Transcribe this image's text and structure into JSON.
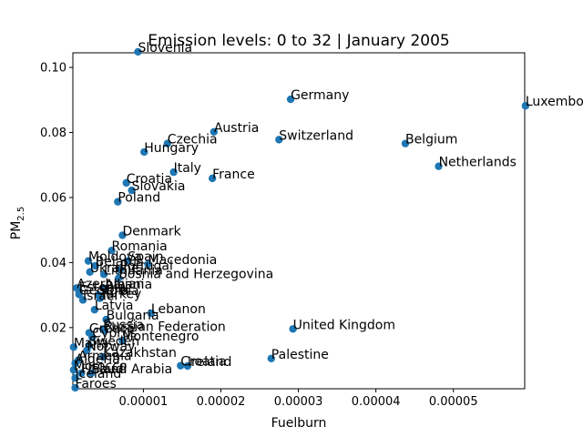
{
  "chart_data": {
    "type": "scatter",
    "title": "Emission levels: 0 to 32 | January 2005",
    "xlabel": "Fuelburn",
    "ylabel": "PM",
    "ylabel_sub": "2.5",
    "xlim": [
      9e-07,
      5.92e-05
    ],
    "ylim": [
      0.0012,
      0.1045
    ],
    "xticks": [
      1e-05,
      2e-05,
      3e-05,
      4e-05,
      5e-05
    ],
    "xtick_labels": [
      "0.00001",
      "0.00002",
      "0.00003",
      "0.00004",
      "0.00005"
    ],
    "yticks": [
      0.02,
      0.04,
      0.06,
      0.08,
      0.1
    ],
    "ytick_labels": [
      "0.02",
      "0.04",
      "0.06",
      "0.08",
      "0.10"
    ],
    "marker_color": "#1f77b4",
    "grid": false,
    "points": [
      {
        "label": "Slovenia",
        "x": 9.3e-06,
        "y": 0.1048
      },
      {
        "label": "Germany",
        "x": 2.9e-05,
        "y": 0.0902
      },
      {
        "label": "Luxembourg",
        "x": 5.93e-05,
        "y": 0.0882
      },
      {
        "label": "Austria",
        "x": 1.91e-05,
        "y": 0.0802
      },
      {
        "label": "Czechia",
        "x": 1.31e-05,
        "y": 0.0766
      },
      {
        "label": "Switzerland",
        "x": 2.75e-05,
        "y": 0.0778
      },
      {
        "label": "Belgium",
        "x": 4.38e-05,
        "y": 0.0766
      },
      {
        "label": "Hungary",
        "x": 1.01e-05,
        "y": 0.074
      },
      {
        "label": "Netherlands",
        "x": 4.81e-05,
        "y": 0.0696
      },
      {
        "label": "Italy",
        "x": 1.39e-05,
        "y": 0.0678
      },
      {
        "label": "France",
        "x": 1.89e-05,
        "y": 0.0659
      },
      {
        "label": "Croatia",
        "x": 7.8e-06,
        "y": 0.0645
      },
      {
        "label": "Slovakia",
        "x": 8.5e-06,
        "y": 0.0622
      },
      {
        "label": "Poland",
        "x": 6.7e-06,
        "y": 0.0587
      },
      {
        "label": "Denmark",
        "x": 7.3e-06,
        "y": 0.0484
      },
      {
        "label": "Romania",
        "x": 5.9e-06,
        "y": 0.0437
      },
      {
        "label": "Moldova",
        "x": 2.9e-06,
        "y": 0.0405
      },
      {
        "label": "Spain",
        "x": 8e-06,
        "y": 0.0405
      },
      {
        "label": "Macedonia",
        "x": 1.06e-05,
        "y": 0.0395
      },
      {
        "label": "Belarus",
        "x": 3.8e-06,
        "y": 0.039
      },
      {
        "label": "Portugal",
        "x": 7e-06,
        "y": 0.0378
      },
      {
        "label": "Ukraine",
        "x": 3.1e-06,
        "y": 0.0371
      },
      {
        "label": "Lithuania",
        "x": 4.9e-06,
        "y": 0.0364
      },
      {
        "label": "Bosnia and Herzegovina",
        "x": 6.8e-06,
        "y": 0.0352
      },
      {
        "label": "Azerbaijan",
        "x": 1.4e-06,
        "y": 0.0322
      },
      {
        "label": "Estonia",
        "x": 1.7e-06,
        "y": 0.0312
      },
      {
        "label": "Albania",
        "x": 5e-06,
        "y": 0.032
      },
      {
        "label": "Georgia",
        "x": 1.7e-06,
        "y": 0.0302
      },
      {
        "label": "Serbia",
        "x": 4.2e-06,
        "y": 0.03
      },
      {
        "label": "Turkey",
        "x": 4.4e-06,
        "y": 0.029
      },
      {
        "label": "Israel",
        "x": 2.2e-06,
        "y": 0.0285
      },
      {
        "label": "Latvia",
        "x": 3.7e-06,
        "y": 0.0255
      },
      {
        "label": "Lebanon",
        "x": 1.1e-05,
        "y": 0.0244
      },
      {
        "label": "Bulgaria",
        "x": 5.2e-06,
        "y": 0.0225
      },
      {
        "label": "Russia",
        "x": 4.8e-06,
        "y": 0.0195
      },
      {
        "label": "Russian Federation",
        "x": 5e-06,
        "y": 0.019
      },
      {
        "label": "Greece",
        "x": 3e-06,
        "y": 0.0184
      },
      {
        "label": "Cyprus",
        "x": 3.4e-06,
        "y": 0.017
      },
      {
        "label": "Montenegro",
        "x": 7.3e-06,
        "y": 0.016
      },
      {
        "label": "Malta",
        "x": 1e-06,
        "y": 0.014
      },
      {
        "label": "Sweden",
        "x": 3e-06,
        "y": 0.0145
      },
      {
        "label": "Norway",
        "x": 2.7e-06,
        "y": 0.013
      },
      {
        "label": "United Kingdom",
        "x": 2.93e-05,
        "y": 0.0196
      },
      {
        "label": "Palestine",
        "x": 2.65e-05,
        "y": 0.0105
      },
      {
        "label": "Kazakhstan",
        "x": 4.8e-06,
        "y": 0.011
      },
      {
        "label": "Armenia",
        "x": 1.6e-06,
        "y": 0.01
      },
      {
        "label": "Algeria",
        "x": 1.2e-06,
        "y": 0.009
      },
      {
        "label": "Croatia",
        "x": 1.48e-05,
        "y": 0.0083
      },
      {
        "label": "Ireland",
        "x": 1.57e-05,
        "y": 0.0082
      },
      {
        "label": "Morocco",
        "x": 1e-06,
        "y": 0.007
      },
      {
        "label": "Finland",
        "x": 2e-06,
        "y": 0.006
      },
      {
        "label": "Saudi Arabia",
        "x": 3.3e-06,
        "y": 0.006
      },
      {
        "label": "Iceland",
        "x": 1.2e-06,
        "y": 0.0045
      },
      {
        "label": "Faroes",
        "x": 1.2e-06,
        "y": 0.0015
      }
    ]
  }
}
